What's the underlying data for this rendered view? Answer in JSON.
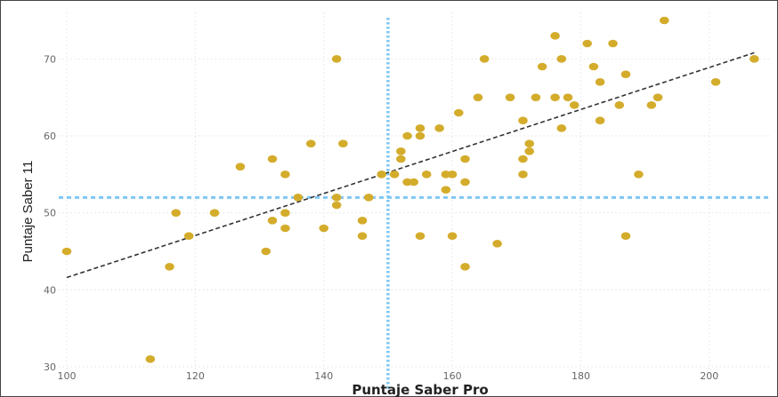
{
  "chart_data": {
    "type": "scatter",
    "title": "",
    "xlabel": "Puntaje Saber Pro",
    "ylabel": "Puntaje Saber 11",
    "xlim": [
      100,
      210
    ],
    "ylim": [
      30,
      75
    ],
    "x_ticks": [
      100,
      120,
      140,
      160,
      180,
      200
    ],
    "y_ticks": [
      30,
      40,
      50,
      60,
      70
    ],
    "x_tick_labels": [
      "100",
      "120",
      "140",
      "160",
      "180",
      "200"
    ],
    "y_tick_labels": [
      "30",
      "40",
      "50",
      "60",
      "70"
    ],
    "grid": true,
    "point_color": "#D4AC2B",
    "trend_line": {
      "x": [
        100,
        207
      ],
      "y": [
        41.6,
        70.8
      ],
      "color": "#333333",
      "style": "dashed"
    },
    "mean_lines": {
      "x": 150,
      "y": 52,
      "color": "#7EC8F5",
      "style": "dotted"
    },
    "points": [
      {
        "x": 100,
        "y": 45
      },
      {
        "x": 113,
        "y": 31
      },
      {
        "x": 116,
        "y": 43
      },
      {
        "x": 117,
        "y": 50
      },
      {
        "x": 119,
        "y": 47
      },
      {
        "x": 123,
        "y": 50
      },
      {
        "x": 127,
        "y": 56
      },
      {
        "x": 131,
        "y": 45
      },
      {
        "x": 132,
        "y": 57
      },
      {
        "x": 132,
        "y": 49
      },
      {
        "x": 134,
        "y": 55
      },
      {
        "x": 134,
        "y": 50
      },
      {
        "x": 134,
        "y": 48
      },
      {
        "x": 136,
        "y": 52
      },
      {
        "x": 138,
        "y": 59
      },
      {
        "x": 140,
        "y": 48
      },
      {
        "x": 142,
        "y": 70
      },
      {
        "x": 142,
        "y": 52
      },
      {
        "x": 142,
        "y": 51
      },
      {
        "x": 143,
        "y": 59
      },
      {
        "x": 146,
        "y": 49
      },
      {
        "x": 146,
        "y": 47
      },
      {
        "x": 147,
        "y": 52
      },
      {
        "x": 149,
        "y": 55
      },
      {
        "x": 151,
        "y": 55
      },
      {
        "x": 152,
        "y": 58
      },
      {
        "x": 152,
        "y": 57
      },
      {
        "x": 153,
        "y": 60
      },
      {
        "x": 153,
        "y": 54
      },
      {
        "x": 154,
        "y": 54
      },
      {
        "x": 155,
        "y": 61
      },
      {
        "x": 155,
        "y": 60
      },
      {
        "x": 155,
        "y": 47
      },
      {
        "x": 156,
        "y": 55
      },
      {
        "x": 158,
        "y": 61
      },
      {
        "x": 159,
        "y": 55
      },
      {
        "x": 159,
        "y": 53
      },
      {
        "x": 160,
        "y": 55
      },
      {
        "x": 160,
        "y": 47
      },
      {
        "x": 161,
        "y": 63
      },
      {
        "x": 162,
        "y": 57
      },
      {
        "x": 162,
        "y": 54
      },
      {
        "x": 162,
        "y": 43
      },
      {
        "x": 164,
        "y": 65
      },
      {
        "x": 165,
        "y": 70
      },
      {
        "x": 167,
        "y": 46
      },
      {
        "x": 169,
        "y": 65
      },
      {
        "x": 171,
        "y": 62
      },
      {
        "x": 171,
        "y": 57
      },
      {
        "x": 171,
        "y": 55
      },
      {
        "x": 172,
        "y": 59
      },
      {
        "x": 172,
        "y": 58
      },
      {
        "x": 173,
        "y": 65
      },
      {
        "x": 174,
        "y": 69
      },
      {
        "x": 176,
        "y": 73
      },
      {
        "x": 176,
        "y": 65
      },
      {
        "x": 177,
        "y": 70
      },
      {
        "x": 177,
        "y": 61
      },
      {
        "x": 178,
        "y": 65
      },
      {
        "x": 179,
        "y": 64
      },
      {
        "x": 181,
        "y": 72
      },
      {
        "x": 182,
        "y": 69
      },
      {
        "x": 183,
        "y": 67
      },
      {
        "x": 183,
        "y": 62
      },
      {
        "x": 185,
        "y": 72
      },
      {
        "x": 186,
        "y": 64
      },
      {
        "x": 187,
        "y": 68
      },
      {
        "x": 187,
        "y": 47
      },
      {
        "x": 189,
        "y": 55
      },
      {
        "x": 191,
        "y": 64
      },
      {
        "x": 192,
        "y": 65
      },
      {
        "x": 193,
        "y": 75
      },
      {
        "x": 201,
        "y": 67
      },
      {
        "x": 207,
        "y": 70
      }
    ]
  }
}
